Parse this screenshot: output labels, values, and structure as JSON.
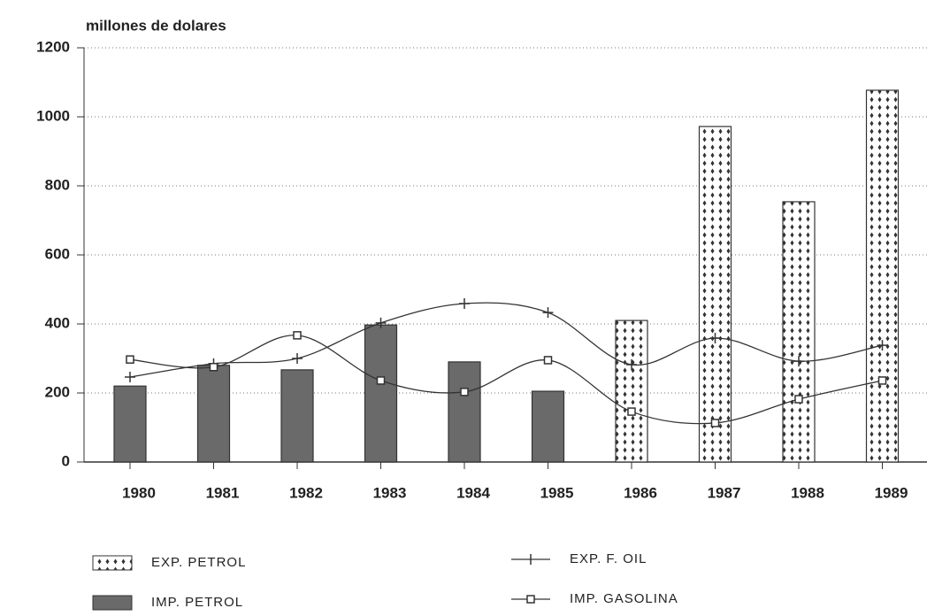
{
  "chart_data": {
    "type": "bar-line",
    "y_label": "millones de dolares",
    "categories": [
      "1980",
      "1981",
      "1982",
      "1983",
      "1984",
      "1985",
      "1986",
      "1987",
      "1988",
      "1989"
    ],
    "series": [
      {
        "name": "EXP. PETROL",
        "kind": "bar",
        "pattern": "dots",
        "color": "#ffffff",
        "values": [
          null,
          null,
          null,
          null,
          null,
          null,
          410,
          972,
          754,
          1077
        ]
      },
      {
        "name": "IMP. PETROL",
        "kind": "bar",
        "color": "#6a6a6a",
        "values": [
          220,
          280,
          267,
          397,
          290,
          205,
          null,
          null,
          null,
          null
        ]
      },
      {
        "name": "EXP. F. OIL",
        "kind": "line",
        "marker": "plus",
        "color": "#333333",
        "values": [
          246,
          285,
          300,
          403,
          459,
          433,
          282,
          359,
          292,
          338
        ]
      },
      {
        "name": "IMP. GASOLINA",
        "kind": "line",
        "marker": "square",
        "color": "#333333",
        "values": [
          297,
          275,
          367,
          236,
          203,
          295,
          146,
          113,
          182,
          236
        ]
      }
    ],
    "ylim": [
      0,
      1200
    ],
    "yticks": [
      0,
      200,
      400,
      600,
      800,
      1000,
      1200
    ],
    "grid": true
  }
}
